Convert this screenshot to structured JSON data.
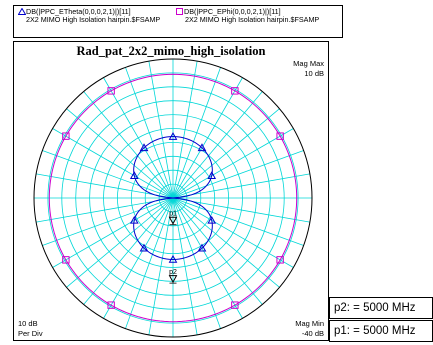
{
  "legend": {
    "entries": [
      {
        "label": "DB(|PPC_ETheta(0,0,0,2,1)|)[11]",
        "dataset": "2X2 MIMO High Isolation hairpin.$FSAMP",
        "color": "#0000cc",
        "marker": "triangle"
      },
      {
        "label": "DB(|PPC_EPhi(0,0,0,2,1)|)[11]",
        "dataset": "2X2 MIMO High Isolation hairpin.$FSAMP",
        "color": "#cc00cc",
        "marker": "square"
      }
    ]
  },
  "chart_data": {
    "type": "polar",
    "title": "Rad_pat_2x2_mimo_high_isolation",
    "mag_max_label": "Mag Max",
    "mag_max_value": "10 dB",
    "mag_min_label": "Mag Min",
    "mag_min_value": "-40 dB",
    "per_div_value": "10 dB",
    "per_div_label": "Per Div",
    "r_range_db": [
      -40,
      10
    ],
    "r_div_db": 10,
    "r_minor_divs_per_major": 2,
    "angular_grid_step_deg": 10,
    "grid": true,
    "grid_color": "#00d7d7",
    "series": [
      {
        "name": "DB(|PPC_ETheta(0,0,0,2,1)|)[11]",
        "color": "#0000cc",
        "marker": "triangle",
        "shape": "dipole",
        "peak_db": -17.9,
        "marker_angles_deg": [
          0,
          30,
          60,
          120,
          150,
          180,
          210,
          240,
          300,
          330
        ]
      },
      {
        "name": "DB(|PPC_EPhi(0,0,0,2,1)|)[11]",
        "color": "#cc00cc",
        "marker": "square",
        "shape": "circle",
        "level_db": 4.5,
        "marker_angles_deg": [
          30,
          60,
          120,
          150,
          210,
          240,
          300,
          330
        ]
      }
    ]
  },
  "markers": [
    {
      "id": "p1",
      "text": "p1: = 5000 MHz",
      "angle_deg": 180,
      "db": -32
    },
    {
      "id": "p2",
      "text": "p2: = 5000 MHz",
      "angle_deg": 180,
      "db": -11
    }
  ]
}
